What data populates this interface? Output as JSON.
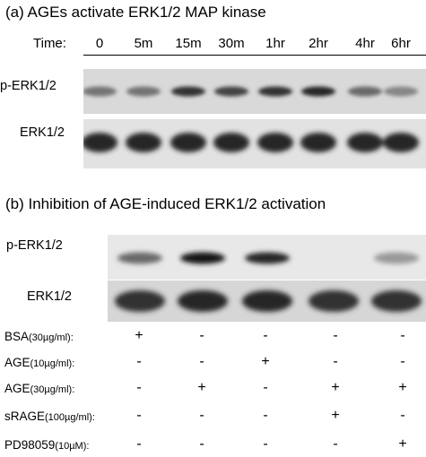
{
  "panel_a": {
    "title": "(a) AGEs activate ERK1/2 MAP kinase",
    "time_label": "Time:",
    "timepoints": [
      "0",
      "5m",
      "15m",
      "30m",
      "1hr",
      "2hr",
      "4hr",
      "6hr"
    ],
    "row1_label": "p-ERK1/2",
    "row2_label": "ERK1/2"
  },
  "panel_b": {
    "title": "(b) Inhibition of AGE-induced ERK1/2 activation",
    "row1_label": "p-ERK1/2",
    "row2_label": "ERK1/2",
    "conditions": [
      {
        "name": "BSA",
        "unit": "(30µg/ml):",
        "marks": [
          "+",
          "-",
          "-",
          "-",
          "-"
        ]
      },
      {
        "name": "AGE",
        "unit": "(10µg/ml):",
        "marks": [
          "-",
          "-",
          "+",
          "-",
          "-"
        ]
      },
      {
        "name": "AGE",
        "unit": "(30µg/ml):",
        "marks": [
          "-",
          "+",
          "-",
          "+",
          "+"
        ]
      },
      {
        "name": "sRAGE",
        "unit": "(100µg/ml):",
        "marks": [
          "-",
          "-",
          "-",
          "+",
          "-"
        ]
      },
      {
        "name": "PD98059",
        "unit": "(10µM):",
        "marks": [
          "-",
          "-",
          "-",
          "-",
          "+"
        ]
      }
    ]
  },
  "band_intensity": {
    "panel_a_phospho": [
      0.45,
      0.45,
      0.8,
      0.7,
      0.8,
      0.85,
      0.5,
      0.35
    ],
    "panel_a_total": [
      0.85,
      0.85,
      0.85,
      0.85,
      0.85,
      0.85,
      0.85,
      0.85
    ],
    "panel_b_phospho": [
      0.5,
      0.95,
      0.85,
      0.0,
      0.25
    ],
    "panel_b_total": [
      0.8,
      0.85,
      0.85,
      0.8,
      0.8
    ]
  }
}
